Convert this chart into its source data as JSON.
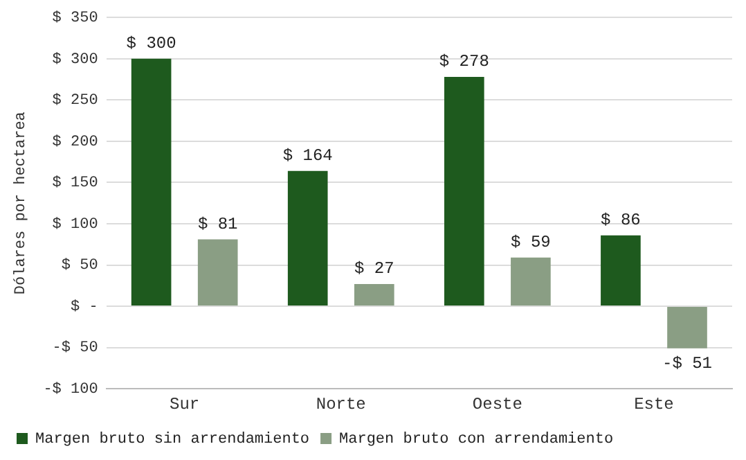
{
  "chart_data": {
    "type": "bar",
    "ylabel": "Dólares por hectarea",
    "categories": [
      "Sur",
      "Norte",
      "Oeste",
      "Este"
    ],
    "series": [
      {
        "name": "Margen bruto sin arrendamiento",
        "color": "#1e5a1e",
        "values": [
          300,
          164,
          278,
          86
        ],
        "value_labels": [
          "$ 300",
          "$ 164",
          "$ 278",
          "$ 86"
        ]
      },
      {
        "name": "Margen bruto con arrendamiento",
        "color": "#8a9e84",
        "values": [
          81,
          27,
          59,
          -51
        ],
        "value_labels": [
          "$ 81",
          "$ 27",
          "$ 59",
          "-$ 51"
        ]
      }
    ],
    "ylim": [
      -100,
      350
    ],
    "yticks": [
      {
        "value": -100,
        "label": "-$ 100"
      },
      {
        "value": -50,
        "label": "-$ 50"
      },
      {
        "value": 0,
        "label": "$ -"
      },
      {
        "value": 50,
        "label": "$ 50"
      },
      {
        "value": 100,
        "label": "$ 100"
      },
      {
        "value": 150,
        "label": "$ 150"
      },
      {
        "value": 200,
        "label": "$ 200"
      },
      {
        "value": 250,
        "label": "$ 250"
      },
      {
        "value": 300,
        "label": "$ 300"
      },
      {
        "value": 350,
        "label": "$ 350"
      }
    ],
    "grid": "y",
    "legend": "bottom"
  }
}
